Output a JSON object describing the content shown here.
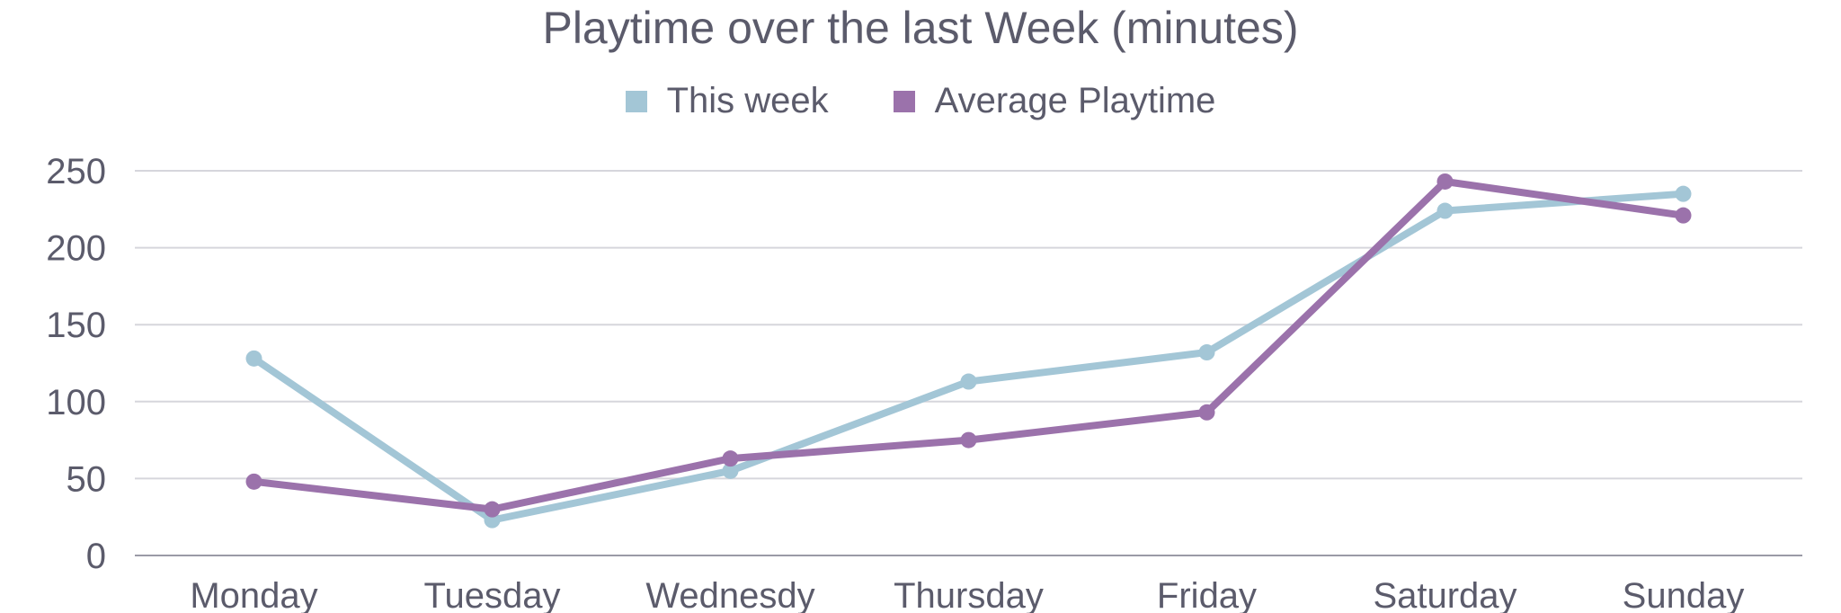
{
  "chart_data": {
    "type": "line",
    "title": "Playtime over the last Week (minutes)",
    "xlabel": "",
    "ylabel": "",
    "categories": [
      "Monday",
      "Tuesday",
      "Wednesdy",
      "Thursday",
      "Friday",
      "Saturday",
      "Sunday"
    ],
    "yticks": [
      0,
      50,
      100,
      150,
      200,
      250
    ],
    "ylim": [
      0,
      250
    ],
    "grid": true,
    "legend_position": "top-center",
    "series": [
      {
        "name": "This week",
        "color": "#a3c6d6",
        "values": [
          128,
          23,
          55,
          113,
          132,
          224,
          235
        ]
      },
      {
        "name": "Average Playtime",
        "color": "#9b72ab",
        "values": [
          48,
          30,
          63,
          75,
          93,
          243,
          221
        ]
      }
    ]
  }
}
